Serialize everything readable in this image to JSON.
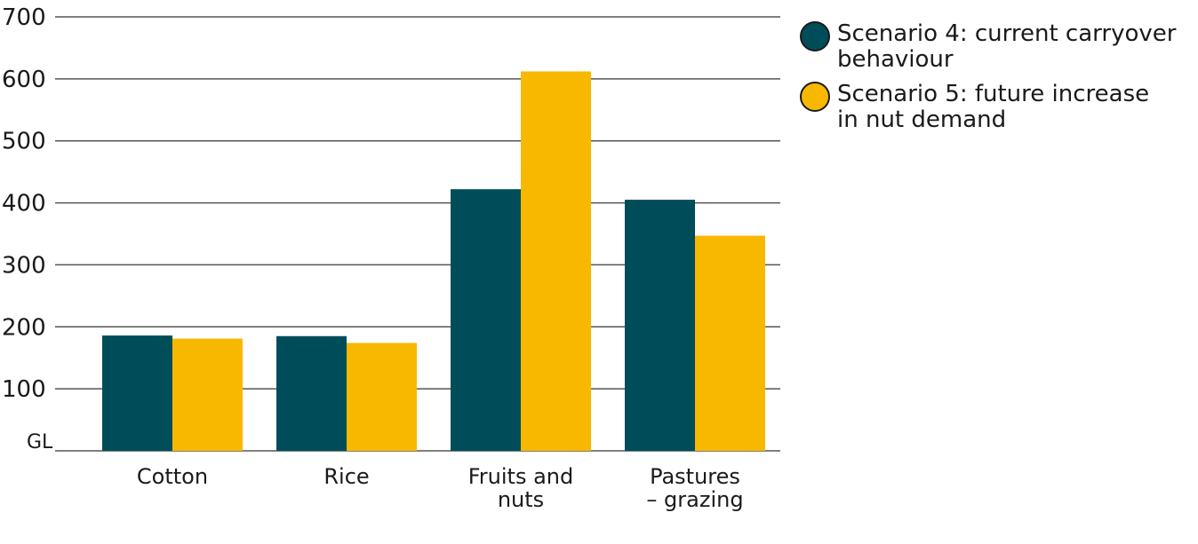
{
  "chart_data": {
    "type": "bar",
    "title": "",
    "xlabel": "",
    "ylabel": "GL",
    "ylim": [
      0,
      700
    ],
    "yticks": [
      100,
      200,
      300,
      400,
      500,
      600,
      700
    ],
    "categories": [
      [
        "Cotton"
      ],
      [
        "Rice"
      ],
      [
        "Fruits and",
        "nuts"
      ],
      [
        "Pastures",
        "– grazing"
      ]
    ],
    "series": [
      {
        "name": "Scenario 4: current carryover behaviour",
        "legend_lines": [
          "Scenario 4: current carryover",
          "behaviour"
        ],
        "color": "#004d5a",
        "values": [
          186,
          185,
          422,
          405
        ]
      },
      {
        "name": "Scenario 5: future increase in nut demand",
        "legend_lines": [
          "Scenario 5: future increase",
          "in nut demand"
        ],
        "color": "#f9b800",
        "values": [
          181,
          174,
          612,
          347
        ]
      }
    ],
    "grid": true,
    "legend": "top-right"
  }
}
